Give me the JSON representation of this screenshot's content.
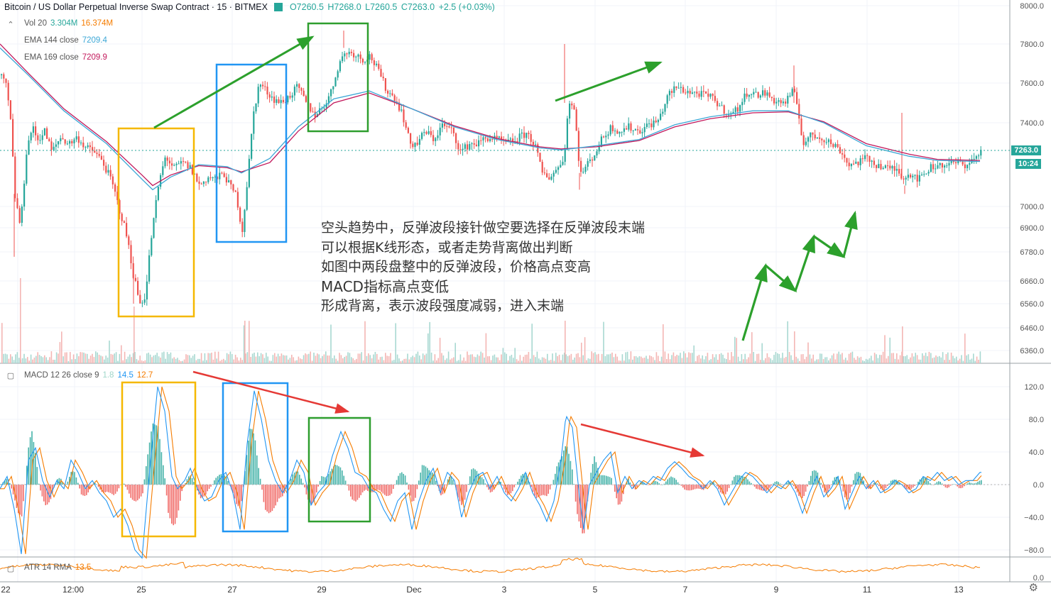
{
  "header": {
    "symbol": "Bitcoin / US Dollar Perpetual Inverse Swap Contract · 15 · BITMEX",
    "open": "O7260.5",
    "high": "H7268.0",
    "low": "L7260.5",
    "close": "C7263.0",
    "change": "+2.5 (+0.03%)"
  },
  "indicators": {
    "vol": {
      "label": "Vol 20",
      "v1": "3.304M",
      "v2": "16.374M"
    },
    "ema144": {
      "label": "EMA 144 close",
      "value": "7209.4"
    },
    "ema169": {
      "label": "EMA 169 close",
      "value": "7209.9"
    },
    "macd": {
      "label": "MACD 12 26 close 9",
      "hist": "1.8",
      "macd": "14.5",
      "signal": "12.7"
    },
    "atr": {
      "label": "ATR 14 RMA",
      "value": "13.5"
    }
  },
  "price_tag": "7263.0",
  "time_tag": "10:24",
  "annotation": [
    "空头趋势中，反弹波段接针做空要选择在反弹波段末端",
    "可以根据K线形态，或者走势背离做出判断",
    "如图中两段盘整中的反弹波段，价格高点变高",
    "MACD指标高点变低",
    "形成背离，表示波段强度减弱，进入末端"
  ],
  "colors": {
    "up": "#26a69a",
    "down": "#ef5350",
    "ema144": "#3ca7d6",
    "ema169": "#c2185b",
    "macd": "#2196f3",
    "signal": "#f57c00",
    "yellow_box": "#f5b800",
    "blue_box": "#2196f3",
    "green_box": "#2e9e2e",
    "green_arrow": "#2ca02c",
    "red_arrow": "#e53935"
  },
  "chart_data": {
    "type": "candlestick",
    "price_axis": {
      "ticks": [
        "8000.0",
        "7800.0",
        "7600.0",
        "7400.0",
        "7263.0",
        "7000.0",
        "6900.0",
        "6780.0",
        "6660.0",
        "6560.0",
        "6460.0",
        "6360.0"
      ]
    },
    "macd_axis": {
      "ticks": [
        "120.0",
        "80.0",
        "40.0",
        "0.0",
        "−40.0",
        "−80.0"
      ]
    },
    "atr_axis": {
      "ticks": [
        "0.0"
      ]
    },
    "x_labels": [
      "22",
      "12:00",
      "25",
      "27",
      "29",
      "Dec",
      "3",
      "5",
      "7",
      "9",
      "11",
      "13"
    ],
    "price_path": [
      [
        0,
        7640
      ],
      [
        8,
        7580
      ],
      [
        14,
        7400
      ],
      [
        20,
        7050
      ],
      [
        28,
        6900
      ],
      [
        36,
        7260
      ],
      [
        44,
        7380
      ],
      [
        52,
        7320
      ],
      [
        62,
        7360
      ],
      [
        72,
        7260
      ],
      [
        84,
        7330
      ],
      [
        96,
        7300
      ],
      [
        108,
        7330
      ],
      [
        120,
        7280
      ],
      [
        132,
        7260
      ],
      [
        144,
        7210
      ],
      [
        156,
        7120
      ],
      [
        166,
        7000
      ],
      [
        176,
        6880
      ],
      [
        186,
        6700
      ],
      [
        196,
        6560
      ],
      [
        204,
        6600
      ],
      [
        212,
        6850
      ],
      [
        222,
        7100
      ],
      [
        232,
        7240
      ],
      [
        244,
        7180
      ],
      [
        256,
        7210
      ],
      [
        268,
        7180
      ],
      [
        280,
        7100
      ],
      [
        292,
        7140
      ],
      [
        304,
        7130
      ],
      [
        314,
        7160
      ],
      [
        322,
        7100
      ],
      [
        332,
        7050
      ],
      [
        340,
        6880
      ],
      [
        348,
        7150
      ],
      [
        356,
        7450
      ],
      [
        364,
        7600
      ],
      [
        374,
        7560
      ],
      [
        384,
        7520
      ],
      [
        396,
        7500
      ],
      [
        408,
        7540
      ],
      [
        418,
        7580
      ],
      [
        430,
        7500
      ],
      [
        442,
        7440
      ],
      [
        454,
        7480
      ],
      [
        466,
        7560
      ],
      [
        476,
        7700
      ],
      [
        486,
        7760
      ],
      [
        498,
        7750
      ],
      [
        510,
        7720
      ],
      [
        520,
        7740
      ],
      [
        532,
        7660
      ],
      [
        544,
        7560
      ],
      [
        556,
        7520
      ],
      [
        566,
        7440
      ],
      [
        576,
        7300
      ],
      [
        586,
        7300
      ],
      [
        598,
        7360
      ],
      [
        610,
        7320
      ],
      [
        622,
        7390
      ],
      [
        636,
        7360
      ],
      [
        648,
        7260
      ],
      [
        660,
        7300
      ],
      [
        672,
        7300
      ],
      [
        684,
        7330
      ],
      [
        698,
        7320
      ],
      [
        712,
        7300
      ],
      [
        726,
        7320
      ],
      [
        740,
        7350
      ],
      [
        752,
        7300
      ],
      [
        762,
        7160
      ],
      [
        772,
        7140
      ],
      [
        784,
        7180
      ],
      [
        794,
        7250
      ],
      [
        800,
        7520
      ],
      [
        808,
        7460
      ],
      [
        816,
        7150
      ],
      [
        826,
        7200
      ],
      [
        836,
        7250
      ],
      [
        848,
        7330
      ],
      [
        860,
        7380
      ],
      [
        872,
        7360
      ],
      [
        884,
        7380
      ],
      [
        898,
        7360
      ],
      [
        912,
        7390
      ],
      [
        926,
        7410
      ],
      [
        940,
        7540
      ],
      [
        952,
        7580
      ],
      [
        964,
        7560
      ],
      [
        976,
        7550
      ],
      [
        990,
        7540
      ],
      [
        1004,
        7520
      ],
      [
        1016,
        7470
      ],
      [
        1028,
        7440
      ],
      [
        1040,
        7480
      ],
      [
        1052,
        7560
      ],
      [
        1064,
        7540
      ],
      [
        1076,
        7550
      ],
      [
        1090,
        7510
      ],
      [
        1104,
        7500
      ],
      [
        1116,
        7560
      ],
      [
        1122,
        7480
      ],
      [
        1130,
        7300
      ],
      [
        1142,
        7340
      ],
      [
        1156,
        7330
      ],
      [
        1170,
        7300
      ],
      [
        1182,
        7270
      ],
      [
        1194,
        7200
      ],
      [
        1206,
        7210
      ],
      [
        1220,
        7230
      ],
      [
        1234,
        7200
      ],
      [
        1248,
        7180
      ],
      [
        1260,
        7180
      ],
      [
        1272,
        7140
      ],
      [
        1282,
        7160
      ],
      [
        1294,
        7130
      ],
      [
        1306,
        7180
      ],
      [
        1320,
        7200
      ],
      [
        1334,
        7200
      ],
      [
        1348,
        7210
      ],
      [
        1360,
        7200
      ],
      [
        1372,
        7230
      ],
      [
        1380,
        7262
      ]
    ],
    "ema144_path": [
      [
        0,
        7780
      ],
      [
        40,
        7640
      ],
      [
        90,
        7460
      ],
      [
        150,
        7300
      ],
      [
        200,
        7130
      ],
      [
        215,
        7080
      ],
      [
        240,
        7140
      ],
      [
        280,
        7200
      ],
      [
        320,
        7190
      ],
      [
        340,
        7160
      ],
      [
        380,
        7230
      ],
      [
        420,
        7380
      ],
      [
        470,
        7520
      ],
      [
        520,
        7560
      ],
      [
        580,
        7470
      ],
      [
        640,
        7380
      ],
      [
        700,
        7320
      ],
      [
        760,
        7280
      ],
      [
        790,
        7270
      ],
      [
        840,
        7290
      ],
      [
        900,
        7320
      ],
      [
        950,
        7390
      ],
      [
        1000,
        7430
      ],
      [
        1060,
        7460
      ],
      [
        1110,
        7460
      ],
      [
        1160,
        7400
      ],
      [
        1220,
        7290
      ],
      [
        1280,
        7240
      ],
      [
        1320,
        7220
      ],
      [
        1380,
        7215
      ]
    ],
    "ema169_path": [
      [
        0,
        7800
      ],
      [
        40,
        7650
      ],
      [
        90,
        7470
      ],
      [
        150,
        7310
      ],
      [
        200,
        7150
      ],
      [
        215,
        7100
      ],
      [
        240,
        7150
      ],
      [
        280,
        7195
      ],
      [
        320,
        7185
      ],
      [
        340,
        7165
      ],
      [
        380,
        7210
      ],
      [
        420,
        7360
      ],
      [
        470,
        7500
      ],
      [
        520,
        7550
      ],
      [
        580,
        7470
      ],
      [
        640,
        7385
      ],
      [
        700,
        7325
      ],
      [
        760,
        7285
      ],
      [
        790,
        7275
      ],
      [
        840,
        7285
      ],
      [
        900,
        7315
      ],
      [
        950,
        7380
      ],
      [
        1000,
        7420
      ],
      [
        1060,
        7450
      ],
      [
        1110,
        7455
      ],
      [
        1160,
        7405
      ],
      [
        1220,
        7300
      ],
      [
        1280,
        7250
      ],
      [
        1320,
        7225
      ],
      [
        1380,
        7220
      ]
    ],
    "macd_path": [
      [
        0,
        -5
      ],
      [
        10,
        10
      ],
      [
        20,
        -30
      ],
      [
        30,
        -85
      ],
      [
        40,
        30
      ],
      [
        50,
        45
      ],
      [
        60,
        5
      ],
      [
        70,
        -15
      ],
      [
        80,
        5
      ],
      [
        90,
        -5
      ],
      [
        100,
        30
      ],
      [
        110,
        15
      ],
      [
        120,
        -5
      ],
      [
        130,
        5
      ],
      [
        140,
        -10
      ],
      [
        150,
        -20
      ],
      [
        160,
        -40
      ],
      [
        170,
        -30
      ],
      [
        180,
        -50
      ],
      [
        190,
        -80
      ],
      [
        200,
        -90
      ],
      [
        210,
        10
      ],
      [
        222,
        120
      ],
      [
        232,
        90
      ],
      [
        242,
        10
      ],
      [
        250,
        -5
      ],
      [
        260,
        5
      ],
      [
        268,
        20
      ],
      [
        278,
        -5
      ],
      [
        288,
        -20
      ],
      [
        298,
        -15
      ],
      [
        308,
        5
      ],
      [
        318,
        15
      ],
      [
        328,
        -10
      ],
      [
        338,
        -55
      ],
      [
        348,
        50
      ],
      [
        358,
        115
      ],
      [
        368,
        80
      ],
      [
        378,
        30
      ],
      [
        388,
        5
      ],
      [
        398,
        -10
      ],
      [
        408,
        5
      ],
      [
        418,
        30
      ],
      [
        428,
        15
      ],
      [
        438,
        -25
      ],
      [
        448,
        -10
      ],
      [
        458,
        0
      ],
      [
        468,
        35
      ],
      [
        480,
        65
      ],
      [
        490,
        45
      ],
      [
        500,
        15
      ],
      [
        510,
        10
      ],
      [
        520,
        -5
      ],
      [
        530,
        -10
      ],
      [
        540,
        -30
      ],
      [
        550,
        -45
      ],
      [
        560,
        -20
      ],
      [
        570,
        -10
      ],
      [
        580,
        -55
      ],
      [
        590,
        -20
      ],
      [
        600,
        5
      ],
      [
        610,
        20
      ],
      [
        620,
        -10
      ],
      [
        630,
        15
      ],
      [
        640,
        5
      ],
      [
        650,
        -40
      ],
      [
        660,
        -10
      ],
      [
        670,
        10
      ],
      [
        680,
        15
      ],
      [
        690,
        -5
      ],
      [
        700,
        10
      ],
      [
        710,
        -10
      ],
      [
        720,
        -20
      ],
      [
        730,
        -5
      ],
      [
        740,
        15
      ],
      [
        750,
        -10
      ],
      [
        760,
        -25
      ],
      [
        770,
        -45
      ],
      [
        780,
        -20
      ],
      [
        790,
        30
      ],
      [
        797,
        85
      ],
      [
        806,
        70
      ],
      [
        816,
        -15
      ],
      [
        822,
        -55
      ],
      [
        830,
        0
      ],
      [
        840,
        15
      ],
      [
        850,
        30
      ],
      [
        860,
        40
      ],
      [
        870,
        -10
      ],
      [
        880,
        10
      ],
      [
        890,
        -5
      ],
      [
        900,
        5
      ],
      [
        910,
        0
      ],
      [
        920,
        10
      ],
      [
        930,
        5
      ],
      [
        940,
        20
      ],
      [
        950,
        28
      ],
      [
        960,
        20
      ],
      [
        970,
        10
      ],
      [
        980,
        5
      ],
      [
        990,
        -5
      ],
      [
        1000,
        5
      ],
      [
        1010,
        -5
      ],
      [
        1020,
        -25
      ],
      [
        1030,
        -10
      ],
      [
        1040,
        5
      ],
      [
        1050,
        15
      ],
      [
        1060,
        10
      ],
      [
        1070,
        0
      ],
      [
        1080,
        -10
      ],
      [
        1090,
        0
      ],
      [
        1100,
        -5
      ],
      [
        1110,
        5
      ],
      [
        1120,
        -10
      ],
      [
        1130,
        -35
      ],
      [
        1140,
        -10
      ],
      [
        1150,
        10
      ],
      [
        1160,
        -15
      ],
      [
        1170,
        -5
      ],
      [
        1180,
        10
      ],
      [
        1190,
        -30
      ],
      [
        1200,
        -10
      ],
      [
        1210,
        10
      ],
      [
        1220,
        -5
      ],
      [
        1230,
        5
      ],
      [
        1240,
        -10
      ],
      [
        1250,
        -5
      ],
      [
        1260,
        5
      ],
      [
        1270,
        0
      ],
      [
        1280,
        -10
      ],
      [
        1290,
        -5
      ],
      [
        1300,
        10
      ],
      [
        1310,
        5
      ],
      [
        1320,
        15
      ],
      [
        1330,
        5
      ],
      [
        1340,
        10
      ],
      [
        1350,
        0
      ],
      [
        1360,
        5
      ],
      [
        1370,
        5
      ],
      [
        1380,
        15
      ]
    ]
  }
}
